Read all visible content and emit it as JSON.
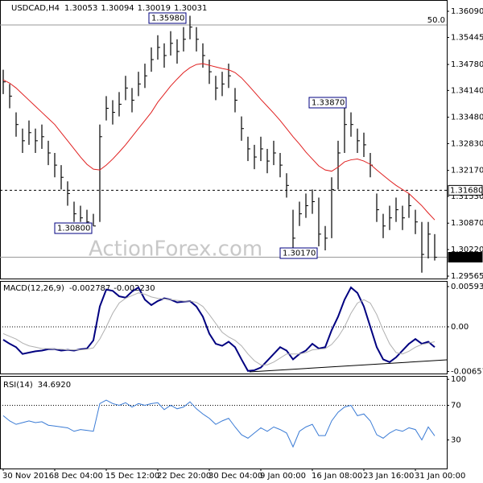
{
  "chart_data": [
    {
      "type": "ohlc",
      "title": "USDCAD,H4",
      "header_values": [
        1.30053,
        1.30094,
        1.30019,
        1.30031
      ],
      "color": "#000000",
      "high": [
        1.3465,
        1.343,
        1.336,
        1.332,
        1.334,
        1.332,
        1.333,
        1.329,
        1.326,
        1.323,
        1.319,
        1.314,
        1.313,
        1.312,
        1.311,
        1.333,
        1.34,
        1.339,
        1.341,
        1.345,
        1.342,
        1.346,
        1.348,
        1.352,
        1.355,
        1.353,
        1.356,
        1.354,
        1.357,
        1.3598,
        1.357,
        1.353,
        1.349,
        1.345,
        1.346,
        1.348,
        1.342,
        1.335,
        1.33,
        1.328,
        1.33,
        1.327,
        1.329,
        1.326,
        1.321,
        1.312,
        1.314,
        1.316,
        1.317,
        1.315,
        1.308,
        1.32,
        1.329,
        1.3387,
        1.336,
        1.332,
        1.331,
        1.326,
        1.316,
        1.311,
        1.313,
        1.315,
        1.313,
        1.316,
        1.312,
        1.309,
        1.309,
        1.306
      ],
      "low": [
        1.3405,
        1.337,
        1.33,
        1.326,
        1.328,
        1.326,
        1.327,
        1.323,
        1.32,
        1.317,
        1.313,
        1.309,
        1.309,
        1.3085,
        1.308,
        1.309,
        1.334,
        1.333,
        1.335,
        1.339,
        1.336,
        1.34,
        1.342,
        1.346,
        1.349,
        1.347,
        1.35,
        1.348,
        1.351,
        1.354,
        1.351,
        1.347,
        1.343,
        1.339,
        1.34,
        1.342,
        1.336,
        1.329,
        1.324,
        1.322,
        1.324,
        1.321,
        1.323,
        1.32,
        1.315,
        1.3017,
        1.308,
        1.31,
        1.311,
        1.303,
        1.302,
        1.305,
        1.317,
        1.326,
        1.33,
        1.326,
        1.325,
        1.32,
        1.309,
        1.305,
        1.307,
        1.309,
        1.307,
        1.31,
        1.306,
        1.2965,
        1.3,
        1.2995
      ],
      "close": [
        1.3435,
        1.34,
        1.333,
        1.329,
        1.331,
        1.329,
        1.33,
        1.326,
        1.323,
        1.32,
        1.316,
        1.311,
        1.31,
        1.309,
        1.308,
        1.33,
        1.337,
        1.336,
        1.338,
        1.342,
        1.339,
        1.343,
        1.345,
        1.349,
        1.352,
        1.35,
        1.353,
        1.351,
        1.354,
        1.357,
        1.354,
        1.35,
        1.346,
        1.342,
        1.343,
        1.345,
        1.339,
        1.332,
        1.327,
        1.325,
        1.327,
        1.324,
        1.326,
        1.323,
        1.318,
        1.305,
        1.311,
        1.313,
        1.314,
        1.306,
        1.305,
        1.317,
        1.326,
        1.333,
        1.333,
        1.329,
        1.328,
        1.323,
        1.312,
        1.308,
        1.31,
        1.312,
        1.31,
        1.313,
        1.309,
        1.301,
        1.306,
        1.30031
      ],
      "ma": {
        "color": "#e02020",
        "values": [
          1.344,
          1.3432,
          1.342,
          1.3405,
          1.339,
          1.3375,
          1.336,
          1.3345,
          1.333,
          1.331,
          1.329,
          1.327,
          1.325,
          1.3232,
          1.322,
          1.3218,
          1.323,
          1.3245,
          1.3262,
          1.328,
          1.33,
          1.332,
          1.334,
          1.336,
          1.3385,
          1.3405,
          1.3425,
          1.3442,
          1.3458,
          1.347,
          1.3478,
          1.348,
          1.3476,
          1.3472,
          1.3468,
          1.3465,
          1.3458,
          1.3445,
          1.3428,
          1.341,
          1.3392,
          1.3375,
          1.3358,
          1.334,
          1.332,
          1.33,
          1.3282,
          1.3262,
          1.3245,
          1.3228,
          1.3218,
          1.3215,
          1.3225,
          1.3238,
          1.3243,
          1.3245,
          1.324,
          1.3232,
          1.3218,
          1.3205,
          1.3192,
          1.318,
          1.317,
          1.316,
          1.3145,
          1.313,
          1.3112,
          1.3095
        ]
      },
      "ylim": [
        1.29486,
        1.36368
      ],
      "yticks": [
        {
          "value": 1.3609,
          "label": "1.36090"
        },
        {
          "value": 1.35445,
          "label": "1.35445"
        },
        {
          "value": 1.3478,
          "label": "1.34780"
        },
        {
          "value": 1.3414,
          "label": "1.34140"
        },
        {
          "value": 1.3348,
          "label": "1.33480"
        },
        {
          "value": 1.3283,
          "label": "1.32830"
        },
        {
          "value": 1.3217,
          "label": "1.32170"
        },
        {
          "value": 1.3153,
          "label": "1.31530"
        },
        {
          "value": 1.3087,
          "label": "1.30870"
        },
        {
          "value": 1.3022,
          "label": "1.30220"
        },
        {
          "value": 1.29565,
          "label": "1.29565"
        }
      ],
      "levels": [
        {
          "value": 1.35753,
          "label": "50.0",
          "style": "fib"
        },
        {
          "value": 1.3168,
          "label": "1.31680",
          "style": "dashed"
        },
        {
          "value": 1.30031,
          "label": "1.30031",
          "style": "current"
        }
      ],
      "annotations": [
        {
          "value": 1.3598,
          "label": "1.35980"
        },
        {
          "value": 1.308,
          "label": "1.30800"
        },
        {
          "value": 1.3387,
          "label": "1.33870"
        },
        {
          "value": 1.3017,
          "label": "1.30170"
        }
      ],
      "watermark": "ActionForex.com"
    },
    {
      "type": "line",
      "title": "MACD(12,26,9)",
      "header_values": [
        -0.002787,
        {
          "value": -0.00223,
          "label": "-0.002230"
        }
      ],
      "series": [
        {
          "color": "#000080",
          "values": [
            -0.0019,
            -0.0025,
            -0.003,
            -0.004,
            -0.0038,
            -0.0036,
            -0.0035,
            -0.0033,
            -0.0033,
            -0.0035,
            -0.0034,
            -0.0035,
            -0.0033,
            -0.0032,
            -0.002,
            0.003,
            0.0055,
            0.0053,
            0.0045,
            0.0043,
            0.0052,
            0.0058,
            0.004,
            0.0032,
            0.0038,
            0.0042,
            0.004,
            0.0036,
            0.0037,
            0.0038,
            0.003,
            0.0015,
            -0.001,
            -0.0025,
            -0.0028,
            -0.0022,
            -0.003,
            -0.0048,
            -0.0065,
            -0.0064,
            -0.006,
            -0.005,
            -0.004,
            -0.003,
            -0.0035,
            -0.0048,
            -0.004,
            -0.0035,
            -0.0025,
            -0.0032,
            -0.003,
            -0.0005,
            0.0015,
            0.004,
            0.0058,
            0.005,
            0.003,
            0.0,
            -0.003,
            -0.0048,
            -0.0052,
            -0.0045,
            -0.0035,
            -0.0025,
            -0.0018,
            -0.0025,
            -0.0022,
            -0.003
          ]
        },
        {
          "color": "#b0b0b0",
          "values": [
            -0.001,
            -0.0014,
            -0.0018,
            -0.0024,
            -0.0028,
            -0.003,
            -0.0032,
            -0.0032,
            -0.0033,
            -0.0033,
            -0.0034,
            -0.0034,
            -0.0034,
            -0.0033,
            -0.0031,
            -0.0018,
            0.0,
            0.002,
            0.0035,
            0.0042,
            0.0046,
            0.005,
            0.0048,
            0.0044,
            0.0042,
            0.0041,
            0.004,
            0.0039,
            0.0038,
            0.0038,
            0.0036,
            0.003,
            0.0018,
            0.0005,
            -0.0008,
            -0.0015,
            -0.002,
            -0.0028,
            -0.004,
            -0.005,
            -0.0056,
            -0.0056,
            -0.0052,
            -0.0046,
            -0.004,
            -0.004,
            -0.004,
            -0.0038,
            -0.0034,
            -0.0033,
            -0.0032,
            -0.0026,
            -0.0015,
            0.0,
            0.002,
            0.0035,
            0.004,
            0.0035,
            0.0018,
            -0.0005,
            -0.0025,
            -0.0038,
            -0.004,
            -0.0036,
            -0.003,
            -0.0026,
            -0.0024,
            -0.0022
          ]
        }
      ],
      "ylim": [
        -0.007,
        0.00664
      ],
      "yticks": [
        0.00593,
        {
          "value": 0,
          "label": "0.00"
        },
        -0.006575
      ],
      "grid": true
    },
    {
      "type": "line",
      "title": "RSI(14)",
      "header_values": [
        {
          "value": 34.692,
          "label": "34.6920"
        }
      ],
      "series": [
        {
          "color": "#3a7bd5",
          "values": [
            58,
            52,
            48,
            50,
            52,
            50,
            51,
            47,
            46,
            45,
            44,
            40,
            42,
            41,
            40,
            72,
            76,
            72,
            70,
            73,
            68,
            72,
            70,
            72,
            73,
            65,
            70,
            66,
            68,
            74,
            66,
            60,
            55,
            48,
            52,
            55,
            45,
            36,
            32,
            38,
            44,
            40,
            45,
            42,
            38,
            22,
            40,
            45,
            48,
            35,
            35,
            52,
            62,
            68,
            70,
            58,
            60,
            52,
            36,
            32,
            38,
            42,
            40,
            44,
            42,
            30,
            45,
            34.692
          ]
        }
      ],
      "ylim": [
        -3,
        103
      ],
      "yticks": [
        100,
        70,
        30
      ],
      "grid": true,
      "categories": [
        "30 Nov 2016",
        null,
        null,
        null,
        null,
        null,
        null,
        null,
        "8 Dec 04:00",
        null,
        null,
        null,
        null,
        null,
        null,
        null,
        "15 Dec 12:00",
        null,
        null,
        null,
        null,
        null,
        null,
        null,
        "22 Dec 20:00",
        null,
        null,
        null,
        null,
        null,
        null,
        null,
        "30 Dec 04:00",
        null,
        null,
        null,
        null,
        null,
        null,
        null,
        "9 Jan 00:00",
        null,
        null,
        null,
        null,
        null,
        null,
        null,
        "16 Jan 08:00",
        null,
        null,
        null,
        null,
        null,
        null,
        null,
        "23 Jan 16:00",
        null,
        null,
        null,
        null,
        null,
        null,
        null,
        "31 Jan 00:00",
        null,
        null,
        null
      ]
    }
  ]
}
